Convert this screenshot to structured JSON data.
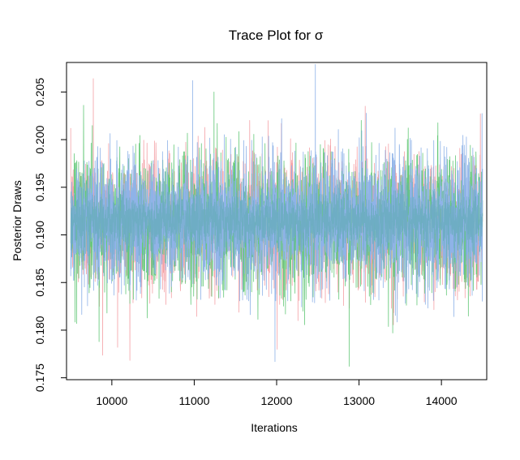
{
  "chart_data": {
    "type": "line",
    "title": "Trace Plot for σ",
    "xlabel": "Iterations",
    "ylabel": "Posterior Draws",
    "xlim": [
      9450,
      14550
    ],
    "ylim": [
      0.1748,
      0.2081
    ],
    "x_ticks": [
      10000,
      11000,
      12000,
      13000,
      14000
    ],
    "x_tick_labels": [
      "10000",
      "11000",
      "12000",
      "13000",
      "14000"
    ],
    "y_ticks": [
      0.175,
      0.18,
      0.185,
      0.19,
      0.195,
      0.2,
      0.205
    ],
    "y_tick_labels": [
      "0.175",
      "0.180",
      "0.185",
      "0.190",
      "0.195",
      "0.200",
      "0.205"
    ],
    "grid": false,
    "legend": false,
    "iterations": [
      9501,
      14500
    ],
    "series": [
      {
        "color": "#f4a3a8",
        "mean": 0.1915,
        "sd": 0.0035,
        "extremes": [
          {
            "x": 9775,
            "y": 0.2064
          },
          {
            "x": 10070,
            "y": 0.1782
          }
        ]
      },
      {
        "color": "#66c97a",
        "mean": 0.1915,
        "sd": 0.0035,
        "extremes": [
          {
            "x": 12880,
            "y": 0.1762
          },
          {
            "x": 11240,
            "y": 0.205
          }
        ]
      },
      {
        "color": "#8fb3e8",
        "mean": 0.1915,
        "sd": 0.0035,
        "extremes": [
          {
            "x": 12470,
            "y": 0.2079
          },
          {
            "x": 11980,
            "y": 0.1767
          },
          {
            "x": 10980,
            "y": 0.2062
          }
        ]
      },
      {
        "color": "#6aacc0",
        "mean": 0.1915,
        "sd": 0.0016,
        "extremes": []
      }
    ]
  }
}
